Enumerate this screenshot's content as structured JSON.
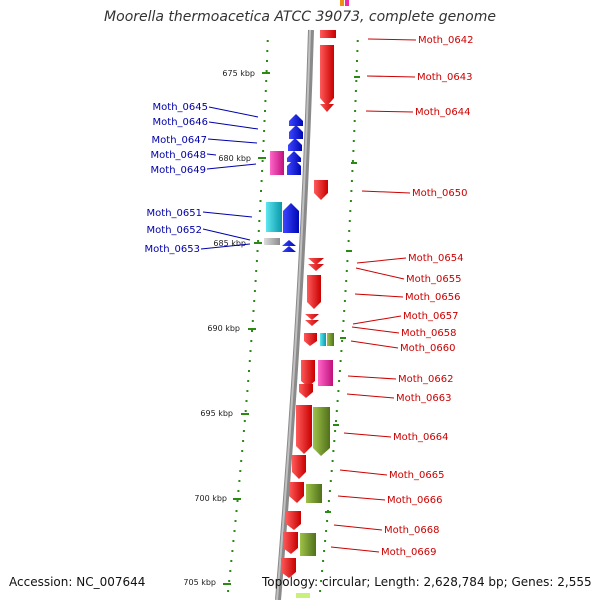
{
  "title": "Moorella thermoacetica ATCC 39073, complete genome",
  "accession_text": "Accession: NC_007644",
  "topology_text": "Topology: circular; Length: 2,628,784 bp; Genes: 2,555",
  "ticks": [
    "675 kbp",
    "680 kbp",
    "685 kbp",
    "690 kbp",
    "695 kbp",
    "700 kbp",
    "705 kbp"
  ],
  "left_genes": [
    "Moth_0645",
    "Moth_0646",
    "Moth_0647",
    "Moth_0648",
    "Moth_0649",
    "Moth_0651",
    "Moth_0652",
    "Moth_0653"
  ],
  "right_genes": [
    "Moth_0642",
    "Moth_0643",
    "Moth_0644",
    "Moth_0650",
    "Moth_0654",
    "Moth_0655",
    "Moth_0656",
    "Moth_0657",
    "Moth_0658",
    "Moth_0660",
    "Moth_0662",
    "Moth_0663",
    "Moth_0664",
    "Moth_0665",
    "Moth_0666",
    "Moth_0668",
    "Moth_0669"
  ],
  "colors": {
    "forward_strand": "#ee1111",
    "reverse_strand": "#0a14e6",
    "left_label": "#0000aa",
    "right_label": "#cc0000",
    "tick": "#2a8a14",
    "backbone": "#888888",
    "cyan": "#14c8d8",
    "magenta": "#ee2aa8",
    "olive": "#7a9a28",
    "grey": "#b4b4b4"
  }
}
